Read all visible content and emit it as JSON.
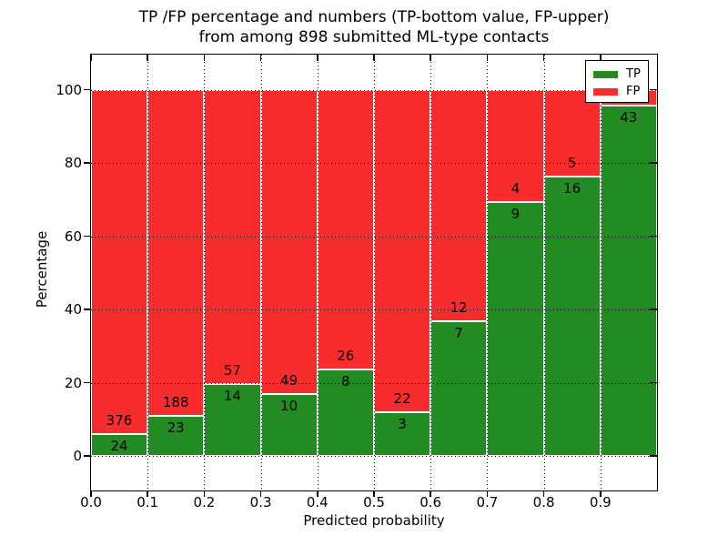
{
  "figure": {
    "title_line1": "TP /FP percentage and numbers (TP-bottom value, FP-upper)",
    "title_line2": "from among 898 submitted ML-type contacts"
  },
  "legend": {
    "position": "upper-right",
    "entries": [
      {
        "label": "TP",
        "color": "#228b22"
      },
      {
        "label": "FP",
        "color": "#f72c2c"
      }
    ]
  },
  "chart_data": {
    "type": "bar",
    "stacked": true,
    "normalized_to_percent": 100,
    "title": "TP /FP percentage and numbers (TP-bottom value, FP-upper) from among 898 submitted ML-type contacts",
    "total_submitted_contacts": 898,
    "xlabel": "Predicted probability",
    "ylabel": "Percentage",
    "bin_left_edges": [
      0.0,
      0.1,
      0.2,
      0.3,
      0.4,
      0.5,
      0.6,
      0.7,
      0.8,
      0.9
    ],
    "bin_width": 0.1,
    "xtick_labels": [
      "0.0",
      "0.1",
      "0.2",
      "0.3",
      "0.4",
      "0.5",
      "0.6",
      "0.7",
      "0.8",
      "0.9"
    ],
    "ytick_values": [
      0,
      20,
      40,
      60,
      80,
      100
    ],
    "xlim": [
      0.0,
      1.0
    ],
    "ylim": [
      -9.5,
      109.5
    ],
    "grid": {
      "style": "dotted",
      "color": "#000000",
      "vertical": true,
      "horizontal": true
    },
    "series": [
      {
        "name": "TP",
        "color": "#228b22",
        "counts": [
          24,
          23,
          14,
          10,
          8,
          3,
          7,
          9,
          16,
          43
        ],
        "percents": [
          6.0,
          10.9,
          19.7,
          16.9,
          23.5,
          12.0,
          36.8,
          69.2,
          76.2,
          95.6
        ]
      },
      {
        "name": "FP",
        "color": "#f72c2c",
        "counts": [
          376,
          188,
          57,
          49,
          26,
          22,
          12,
          4,
          5,
          null
        ],
        "percents": [
          94.0,
          89.1,
          80.3,
          83.1,
          76.5,
          88.0,
          63.2,
          30.8,
          23.8,
          4.4
        ],
        "note": "count label of last bin not visible (occluded by legend)"
      }
    ]
  }
}
